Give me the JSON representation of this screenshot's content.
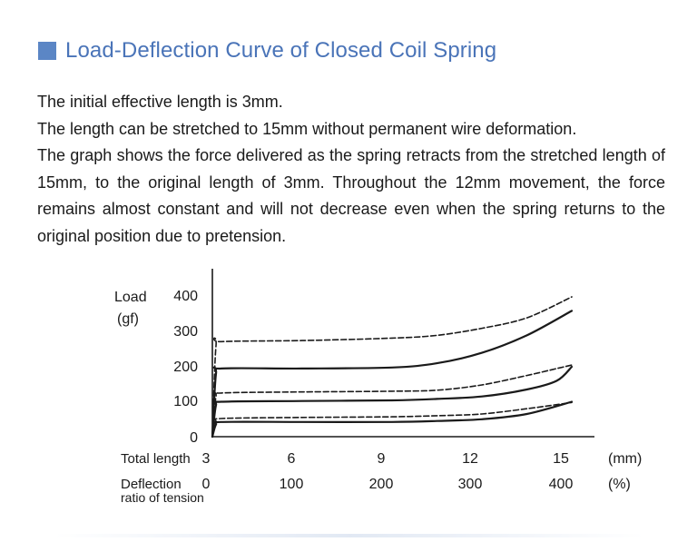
{
  "title": "Load-Deflection Curve of Closed Coil Spring",
  "description": {
    "line1": "The initial effective length is 3mm.",
    "line2": "The length can be stretched to 15mm without permanent wire deformation.",
    "paragraph": "The graph shows the force delivered as the spring retracts from the stretched length of 15mm, to the original length of 3mm. Throughout the 12mm movement, the force remains almost constant and will not decrease even when the spring returns to the original position due to pretension."
  },
  "colors": {
    "title": "#4a74b8",
    "square": "#5b86c5",
    "line": "#1a1a1a"
  },
  "chart_data": {
    "type": "line",
    "y_label_line1": "Load",
    "y_label_line2": "(gf)",
    "y_ticks": [
      "0",
      "100",
      "200",
      "300",
      "400"
    ],
    "ylim": [
      0,
      450
    ],
    "x_length_label": "Total length",
    "x_length_ticks": [
      "3",
      "6",
      "9",
      "12",
      "15"
    ],
    "x_length_unit": "(mm)",
    "x_ratio_label_line1": "Deflection",
    "x_ratio_label_line2": "ratio of tension",
    "x_ratio_ticks": [
      "0",
      "100",
      "200",
      "300",
      "400"
    ],
    "x_ratio_unit": "(%)",
    "xlim": [
      3,
      16.5
    ],
    "series": [
      {
        "name": "spring-1-dashed",
        "style": "dashed",
        "x": [
          3,
          3.12,
          3.3,
          6,
          9,
          10.5,
          12,
          13.5,
          15
        ],
        "y": [
          0,
          42,
          52,
          55,
          57,
          60,
          65,
          80,
          98
        ]
      },
      {
        "name": "spring-1-solid",
        "style": "solid",
        "x": [
          3,
          3.12,
          3.3,
          6,
          9,
          10.5,
          12,
          13.5,
          15
        ],
        "y": [
          0,
          35,
          42,
          42,
          42,
          45,
          50,
          65,
          100
        ]
      },
      {
        "name": "spring-2-dashed",
        "style": "dashed",
        "x": [
          3,
          3.12,
          3.3,
          6,
          9,
          10.5,
          12,
          13.5,
          14.5,
          15
        ],
        "y": [
          0,
          115,
          125,
          128,
          130,
          133,
          148,
          175,
          195,
          205
        ]
      },
      {
        "name": "spring-2-solid",
        "style": "solid",
        "x": [
          3,
          3.12,
          3.3,
          6,
          9,
          10.5,
          12,
          13.5,
          14.5,
          15
        ],
        "y": [
          0,
          90,
          100,
          102,
          104,
          108,
          115,
          135,
          160,
          200
        ]
      },
      {
        "name": "spring-3-dashed",
        "style": "dashed",
        "x": [
          3,
          3.12,
          3.3,
          6,
          9,
          10.5,
          12,
          13.5,
          15
        ],
        "y": [
          0,
          260,
          272,
          275,
          282,
          290,
          310,
          340,
          400
        ]
      },
      {
        "name": "spring-3-solid",
        "style": "solid",
        "x": [
          3,
          3.12,
          3.3,
          6,
          9,
          10.5,
          12,
          13.5,
          15
        ],
        "y": [
          0,
          180,
          195,
          195,
          198,
          210,
          240,
          290,
          360
        ]
      }
    ]
  }
}
